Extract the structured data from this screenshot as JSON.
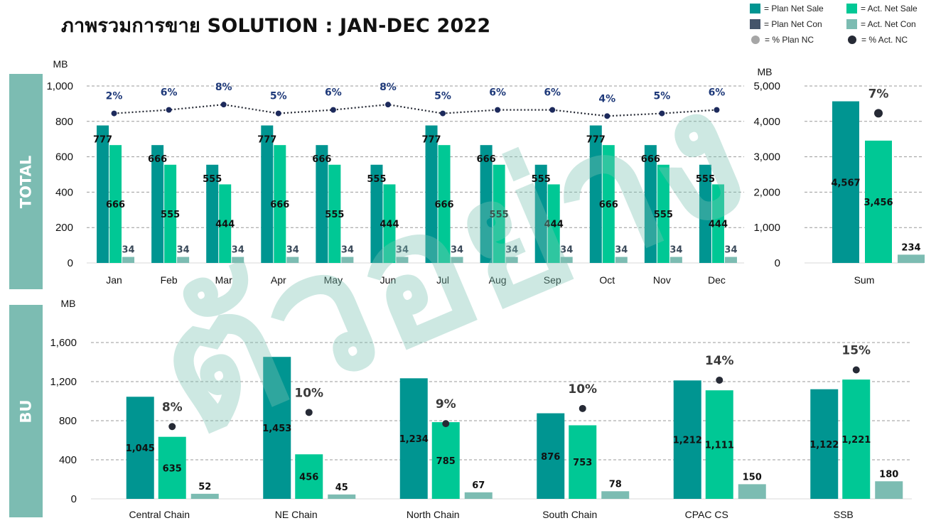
{
  "title": "ภาพรวมการขาย SOLUTION : JAN-DEC 2022",
  "colors": {
    "plan_net_sale": "#009591",
    "act_net_sale": "#00c895",
    "plan_net_con": "#44546a",
    "act_net_con": "#7cbcb2",
    "plan_nc_marker": "#a6a6a6",
    "act_nc_marker": "#262a35",
    "pct_label": "#1f3a7a",
    "side_label_bg": "#7cbcb2",
    "watermark": "#7cc3b4"
  },
  "legend": [
    {
      "label": "= Plan Net Sale",
      "color": "#009591",
      "icon": "square"
    },
    {
      "label": "= Act. Net Sale",
      "color": "#00c895",
      "icon": "square"
    },
    {
      "label": "= Plan Net Con",
      "color": "#44546a",
      "icon": "square"
    },
    {
      "label": "= Act. Net Con",
      "color": "#7cbcb2",
      "icon": "square"
    },
    {
      "label": "= % Plan NC",
      "color": "#a6a6a6",
      "icon": "circle"
    },
    {
      "label": "= % Act. NC",
      "color": "#262a35",
      "icon": "circle"
    }
  ],
  "section_labels": {
    "total": "TOTAL",
    "bu": "BU"
  },
  "watermark_text": "ตัวอย่าง",
  "chart_data": [
    {
      "id": "monthly",
      "type": "bar",
      "ylabel": "MB",
      "ylim": [
        0,
        1000
      ],
      "yticks": [
        "0",
        "200",
        "400",
        "600",
        "800",
        "1,000"
      ],
      "ytick_values": [
        0,
        200,
        400,
        600,
        800,
        1000
      ],
      "grid": true,
      "categories": [
        "Jan",
        "Feb",
        "Mar",
        "Apr",
        "May",
        "Jun",
        "Jul",
        "Aug",
        "Sep",
        "Oct",
        "Nov",
        "Dec"
      ],
      "series": [
        {
          "name": "Plan Net Sale",
          "values": [
            777,
            666,
            555,
            777,
            666,
            555,
            777,
            666,
            555,
            777,
            666,
            555
          ],
          "labels": [
            "777",
            "666",
            "555",
            "777",
            "666",
            "555",
            "777",
            "666",
            "555",
            "777",
            "666",
            "555"
          ]
        },
        {
          "name": "Act. Net Sale",
          "values": [
            666,
            555,
            444,
            666,
            555,
            444,
            666,
            555,
            444,
            666,
            555,
            444
          ],
          "labels": [
            "666",
            "555",
            "444",
            "666",
            "555",
            "444",
            "666",
            "555",
            "444",
            "666",
            "555",
            "444"
          ]
        },
        {
          "name": "Act. Net Con",
          "values": [
            34,
            34,
            34,
            34,
            34,
            34,
            34,
            34,
            34,
            34,
            34,
            34
          ],
          "labels": [
            "34",
            "34",
            "34",
            "34",
            "34",
            "34",
            "34",
            "34",
            "34",
            "34",
            "34",
            "34"
          ]
        }
      ],
      "pct_act_nc": {
        "line": "dotted",
        "values": [
          2,
          6,
          8,
          5,
          6,
          8,
          5,
          6,
          6,
          4,
          5,
          6
        ],
        "labels": [
          "2%",
          "6%",
          "8%",
          "5%",
          "6%",
          "8%",
          "5%",
          "6%",
          "6%",
          "4%",
          "5%",
          "6%"
        ],
        "marker_level_mb": [
          845,
          865,
          895,
          845,
          865,
          895,
          845,
          865,
          865,
          830,
          845,
          865
        ]
      }
    },
    {
      "id": "sum",
      "type": "bar",
      "ylabel": "MB",
      "ylim": [
        0,
        5000
      ],
      "yticks": [
        "0",
        "1,000",
        "2,000",
        "3,000",
        "4,000",
        "5,000"
      ],
      "ytick_values": [
        0,
        1000,
        2000,
        3000,
        4000,
        5000
      ],
      "grid": true,
      "categories": [
        "Sum"
      ],
      "series": [
        {
          "name": "Plan Net Sale",
          "values": [
            4567
          ],
          "labels": [
            "4,567"
          ]
        },
        {
          "name": "Act. Net Sale",
          "values": [
            3456
          ],
          "labels": [
            "3,456"
          ]
        },
        {
          "name": "Act. Net Con",
          "values": [
            234
          ],
          "labels": [
            "234"
          ]
        }
      ],
      "pct_act_nc": {
        "values": [
          7
        ],
        "labels": [
          "7%"
        ],
        "marker_level_mb": [
          4230
        ]
      }
    },
    {
      "id": "bu",
      "type": "bar",
      "ylabel": "MB",
      "ylim": [
        0,
        1600
      ],
      "yticks": [
        "0",
        "400",
        "800",
        "1,200",
        "1,600"
      ],
      "ytick_values": [
        0,
        400,
        800,
        1200,
        1600
      ],
      "grid": true,
      "categories": [
        "Central Chain",
        "NE Chain",
        "North Chain",
        "South Chain",
        "CPAC CS",
        "SSB"
      ],
      "series": [
        {
          "name": "Plan Net Sale",
          "values": [
            1045,
            1453,
            1234,
            876,
            1212,
            1122
          ],
          "labels": [
            "1,045",
            "1,453",
            "1,234",
            "876",
            "1,212",
            "1,122"
          ]
        },
        {
          "name": "Act. Net Sale",
          "values": [
            635,
            456,
            785,
            753,
            1111,
            1221
          ],
          "labels": [
            "635",
            "456",
            "785",
            "753",
            "1,111",
            "1,221"
          ]
        },
        {
          "name": "Act. Net Con",
          "values": [
            52,
            45,
            67,
            78,
            150,
            180
          ],
          "labels": [
            "52",
            "45",
            "67",
            "78",
            "150",
            "180"
          ]
        }
      ],
      "pct_act_nc": {
        "values": [
          8,
          10,
          9,
          10,
          14,
          15
        ],
        "labels": [
          "8%",
          "10%",
          "9%",
          "10%",
          "14%",
          "15%"
        ],
        "marker_level_mb": [
          740,
          885,
          770,
          925,
          1215,
          1320
        ]
      }
    }
  ]
}
